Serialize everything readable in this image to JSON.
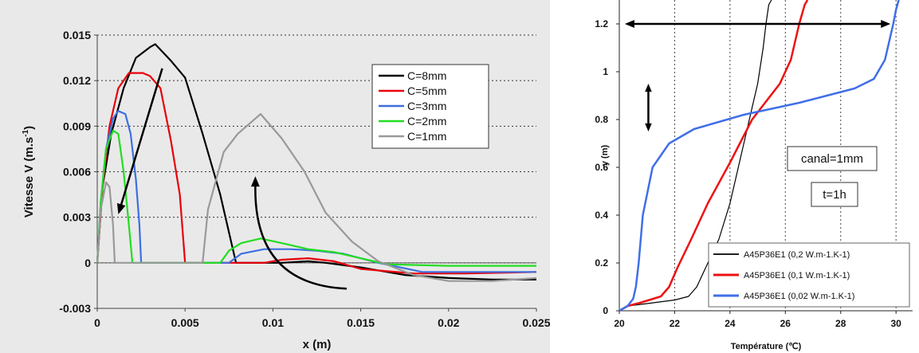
{
  "chart_data": [
    {
      "type": "line",
      "xlabel": "x (m)",
      "ylabel_main": "Vitesse V (m.s",
      "ylabel_sup": "-1",
      "ylabel_end": ")",
      "xlim": [
        0,
        0.025
      ],
      "ylim": [
        -0.003,
        0.015
      ],
      "xticks": [
        0,
        0.005,
        0.01,
        0.015,
        0.02,
        0.025
      ],
      "xtick_labels": [
        "0",
        "0.005",
        "0.01",
        "0.015",
        "0.02",
        "0.025"
      ],
      "yticks": [
        -0.003,
        0,
        0.003,
        0.006,
        0.009,
        0.012,
        0.015
      ],
      "ytick_labels": [
        "-0.003",
        "0",
        "0.003",
        "0.006",
        "0.009",
        "0.012",
        "0.015"
      ],
      "grid": "horizontal dotted",
      "legend_position": "top-right",
      "series": [
        {
          "name": "C=8mm",
          "color": "#000000",
          "points": [
            [
              0,
              0
            ],
            [
              0.0003,
              0.005
            ],
            [
              0.0008,
              0.0085
            ],
            [
              0.0015,
              0.0115
            ],
            [
              0.0022,
              0.0135
            ],
            [
              0.003,
              0.0142
            ],
            [
              0.0033,
              0.0144
            ],
            [
              0.0042,
              0.0133
            ],
            [
              0.005,
              0.0122
            ],
            [
              0.006,
              0.0085
            ],
            [
              0.007,
              0.0045
            ],
            [
              0.0076,
              0.0015
            ],
            [
              0.0079,
              0
            ],
            [
              0.0085,
              0
            ],
            [
              0.0095,
              0
            ],
            [
              0.0105,
              0
            ],
            [
              0.012,
              0.0001
            ],
            [
              0.013,
              0
            ],
            [
              0.015,
              -0.0003
            ],
            [
              0.0175,
              -0.0008
            ],
            [
              0.02,
              -0.001
            ],
            [
              0.0225,
              -0.0011
            ],
            [
              0.025,
              -0.0011
            ]
          ]
        },
        {
          "name": "C=5mm",
          "color": "#e8000b",
          "points": [
            [
              0,
              0
            ],
            [
              0.0003,
              0.005
            ],
            [
              0.0007,
              0.009
            ],
            [
              0.0012,
              0.0115
            ],
            [
              0.0018,
              0.0125
            ],
            [
              0.0026,
              0.0125
            ],
            [
              0.003,
              0.0123
            ],
            [
              0.0036,
              0.0115
            ],
            [
              0.0042,
              0.008
            ],
            [
              0.0047,
              0.0045
            ],
            [
              0.0049,
              0.0015
            ],
            [
              0.005,
              0
            ],
            [
              0.006,
              0
            ],
            [
              0.008,
              0
            ],
            [
              0.0095,
              0
            ],
            [
              0.0105,
              0.0002
            ],
            [
              0.012,
              0.0003
            ],
            [
              0.0135,
              0.0001
            ],
            [
              0.015,
              -0.0004
            ],
            [
              0.018,
              -0.0007
            ],
            [
              0.021,
              -0.0007
            ],
            [
              0.025,
              -0.0006
            ]
          ]
        },
        {
          "name": "C=3mm",
          "color": "#3d6fe0",
          "points": [
            [
              0,
              0
            ],
            [
              0.0002,
              0.004
            ],
            [
              0.0005,
              0.0075
            ],
            [
              0.0009,
              0.0095
            ],
            [
              0.0012,
              0.01
            ],
            [
              0.0016,
              0.0098
            ],
            [
              0.0019,
              0.0085
            ],
            [
              0.0022,
              0.0055
            ],
            [
              0.0024,
              0.0025
            ],
            [
              0.0025,
              0
            ],
            [
              0.005,
              0
            ],
            [
              0.0075,
              0
            ],
            [
              0.0082,
              0.0006
            ],
            [
              0.0095,
              0.0009
            ],
            [
              0.011,
              0.0009
            ],
            [
              0.0125,
              0.0008
            ],
            [
              0.014,
              0.0006
            ],
            [
              0.016,
              0
            ],
            [
              0.0185,
              -0.0006
            ],
            [
              0.021,
              -0.0006
            ],
            [
              0.025,
              -0.0006
            ]
          ]
        },
        {
          "name": "C=2mm",
          "color": "#22dd22",
          "points": [
            [
              0,
              0
            ],
            [
              0.0002,
              0.004
            ],
            [
              0.0005,
              0.0075
            ],
            [
              0.0009,
              0.0087
            ],
            [
              0.0012,
              0.0085
            ],
            [
              0.0015,
              0.006
            ],
            [
              0.0018,
              0.0025
            ],
            [
              0.002,
              0
            ],
            [
              0.004,
              0
            ],
            [
              0.007,
              0
            ],
            [
              0.0075,
              0.0008
            ],
            [
              0.0082,
              0.0013
            ],
            [
              0.0093,
              0.0016
            ],
            [
              0.0105,
              0.0013
            ],
            [
              0.012,
              0.0009
            ],
            [
              0.0135,
              0.0007
            ],
            [
              0.015,
              0.0003
            ],
            [
              0.0165,
              -0.0001
            ],
            [
              0.02,
              -0.0002
            ],
            [
              0.025,
              -0.0002
            ]
          ]
        },
        {
          "name": "C=1mm",
          "color": "#999999",
          "points": [
            [
              0,
              0
            ],
            [
              0.0002,
              0.0035
            ],
            [
              0.0005,
              0.0053
            ],
            [
              0.0007,
              0.005
            ],
            [
              0.0009,
              0.0025
            ],
            [
              0.001,
              0
            ],
            [
              0.003,
              0
            ],
            [
              0.006,
              0
            ],
            [
              0.0063,
              0.0035
            ],
            [
              0.0072,
              0.0073
            ],
            [
              0.008,
              0.0085
            ],
            [
              0.0093,
              0.0098
            ],
            [
              0.0105,
              0.0082
            ],
            [
              0.0118,
              0.006
            ],
            [
              0.013,
              0.0033
            ],
            [
              0.0145,
              0.0014
            ],
            [
              0.016,
              0.0001
            ],
            [
              0.018,
              -0.0008
            ],
            [
              0.02,
              -0.0012
            ],
            [
              0.0225,
              -0.0012
            ],
            [
              0.025,
              -0.001
            ]
          ]
        }
      ],
      "annotations": [
        {
          "type": "arrow",
          "from": [
            0.0037,
            0.0128
          ],
          "to": [
            0.0012,
            0.0032
          ],
          "color": "#000000"
        },
        {
          "type": "arrow",
          "from": [
            0.0142,
            -0.0017
          ],
          "to": [
            0.009,
            0.0057
          ],
          "color": "#000000",
          "curved": true
        }
      ]
    },
    {
      "type": "line",
      "xlabel": "Température (℃)",
      "ylabel": "y (m)",
      "xlim": [
        20,
        30.6
      ],
      "ylim": [
        0,
        1.3
      ],
      "xticks": [
        20,
        22,
        24,
        26,
        28,
        30
      ],
      "xtick_labels": [
        "20",
        "22",
        "24",
        "26",
        "28",
        "30"
      ],
      "yticks": [
        0,
        0.2,
        0.4,
        0.6,
        0.8,
        1,
        1.2
      ],
      "ytick_labels": [
        "0",
        "0.2",
        "0.4",
        "0.6",
        "0.8",
        "1",
        "1.2"
      ],
      "grid": "vertical dotted",
      "legend_position": "bottom-right",
      "text_boxes": [
        "canal=1mm",
        "t=1h"
      ],
      "series": [
        {
          "name": "A45P36E1 (0,2 W.m-1.K-1)",
          "color": "#000000",
          "points": [
            [
              20,
              0
            ],
            [
              20.3,
              0.02
            ],
            [
              21,
              0.03
            ],
            [
              22,
              0.045
            ],
            [
              22.5,
              0.06
            ],
            [
              22.8,
              0.1
            ],
            [
              23.2,
              0.2
            ],
            [
              23.6,
              0.3
            ],
            [
              24,
              0.45
            ],
            [
              24.3,
              0.6
            ],
            [
              24.6,
              0.75
            ],
            [
              24.8,
              0.85
            ],
            [
              25,
              0.95
            ],
            [
              25.2,
              1.1
            ],
            [
              25.3,
              1.2
            ],
            [
              25.4,
              1.28
            ],
            [
              25.5,
              1.3
            ]
          ]
        },
        {
          "name": "A45P36E1 (0,1 W.m-1.K-1)",
          "color": "#ee1111",
          "points": [
            [
              20,
              0
            ],
            [
              20.3,
              0.02
            ],
            [
              20.8,
              0.035
            ],
            [
              21.5,
              0.06
            ],
            [
              21.8,
              0.1
            ],
            [
              22.1,
              0.18
            ],
            [
              22.6,
              0.3
            ],
            [
              23.2,
              0.45
            ],
            [
              24,
              0.62
            ],
            [
              24.8,
              0.8
            ],
            [
              25.8,
              0.95
            ],
            [
              26.2,
              1.05
            ],
            [
              26.5,
              1.2
            ],
            [
              26.7,
              1.28
            ],
            [
              26.8,
              1.3
            ]
          ]
        },
        {
          "name": "A45P36E1 (0,02 W.m-1.K-1)",
          "color": "#3f6fe8",
          "points": [
            [
              20,
              0
            ],
            [
              20.3,
              0.02
            ],
            [
              20.5,
              0.05
            ],
            [
              20.6,
              0.1
            ],
            [
              20.7,
              0.2
            ],
            [
              20.85,
              0.4
            ],
            [
              21.2,
              0.6
            ],
            [
              21.8,
              0.7
            ],
            [
              22.7,
              0.76
            ],
            [
              24.5,
              0.82
            ],
            [
              26.5,
              0.87
            ],
            [
              28.5,
              0.93
            ],
            [
              29.2,
              0.97
            ],
            [
              29.6,
              1.05
            ],
            [
              29.9,
              1.2
            ],
            [
              30,
              1.26
            ],
            [
              30.1,
              1.3
            ]
          ]
        }
      ],
      "annotations": [
        {
          "type": "double-arrow",
          "from": [
            20.2,
            1.2
          ],
          "to": [
            29.8,
            1.2
          ],
          "color": "#000000"
        },
        {
          "type": "double-arrow",
          "from": [
            21.05,
            0.95
          ],
          "to": [
            21.05,
            0.75
          ],
          "color": "#000000"
        }
      ]
    }
  ]
}
